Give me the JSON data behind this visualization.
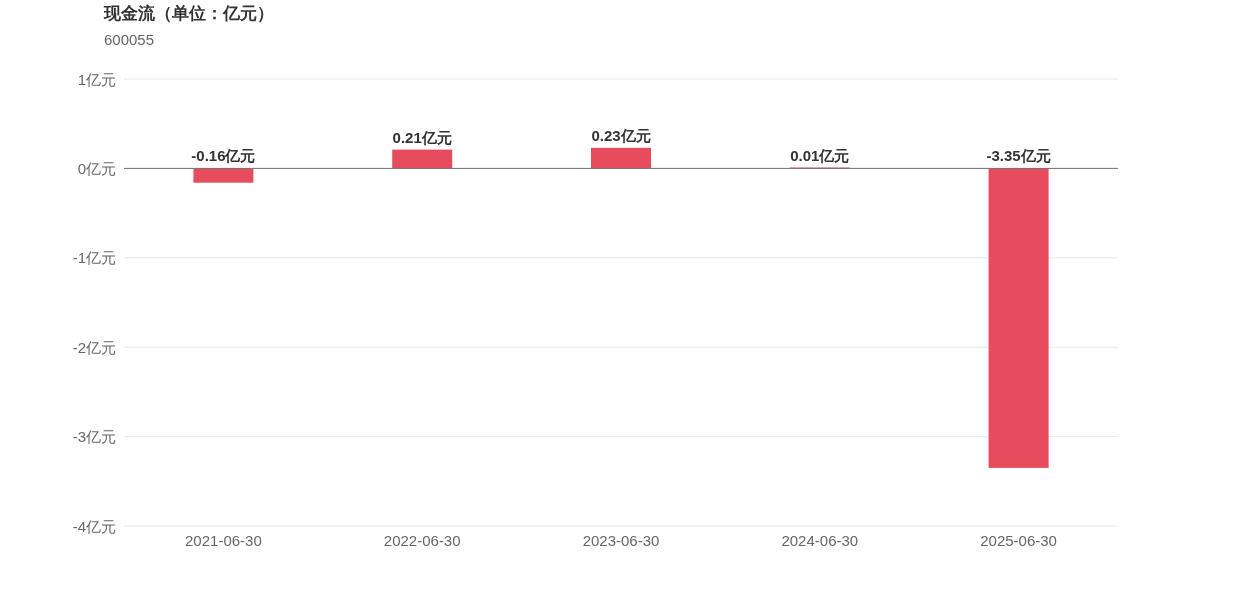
{
  "chart_data": {
    "type": "bar",
    "title": "现金流（单位：亿元）",
    "subtitle": "600055",
    "categories": [
      "2021-06-30",
      "2022-06-30",
      "2023-06-30",
      "2024-06-30",
      "2025-06-30"
    ],
    "values": [
      -0.16,
      0.21,
      0.23,
      0.01,
      -3.35
    ],
    "value_labels": [
      "-0.16亿元",
      "0.21亿元",
      "0.23亿元",
      "0.01亿元",
      "-3.35亿元"
    ],
    "color": "#e64c5e",
    "ylim": [
      -4,
      1
    ],
    "yticks": [
      {
        "value": 1,
        "label": "1亿元"
      },
      {
        "value": 0,
        "label": "0亿元"
      },
      {
        "value": -1,
        "label": "-1亿元"
      },
      {
        "value": -2,
        "label": "-2亿元"
      },
      {
        "value": -3,
        "label": "-3亿元"
      },
      {
        "value": -4,
        "label": "-4亿元"
      }
    ],
    "grid": "y"
  }
}
